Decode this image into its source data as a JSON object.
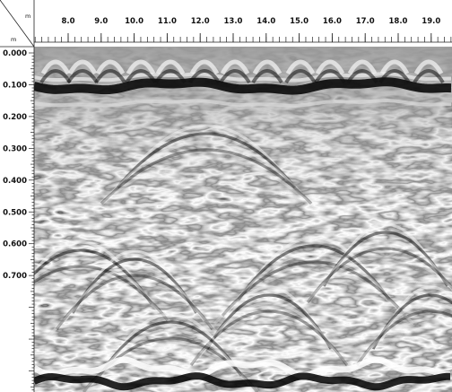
{
  "radargram": {
    "x_unit": "m",
    "y_unit": "m",
    "x_ticks": [
      "8.0",
      "9.0",
      "10.0",
      "11.0",
      "12.0",
      "13.0",
      "14.0",
      "15.0",
      "16.0",
      "17.0",
      "18.0",
      "19.0"
    ],
    "y_ticks": [
      "0.000",
      "0.100",
      "0.200",
      "0.300",
      "0.400",
      "0.500",
      "0.600",
      "0.700"
    ],
    "colormap": {
      "positive": "#ffffff",
      "negative": "#000000",
      "background": "#9a9a9a"
    }
  }
}
